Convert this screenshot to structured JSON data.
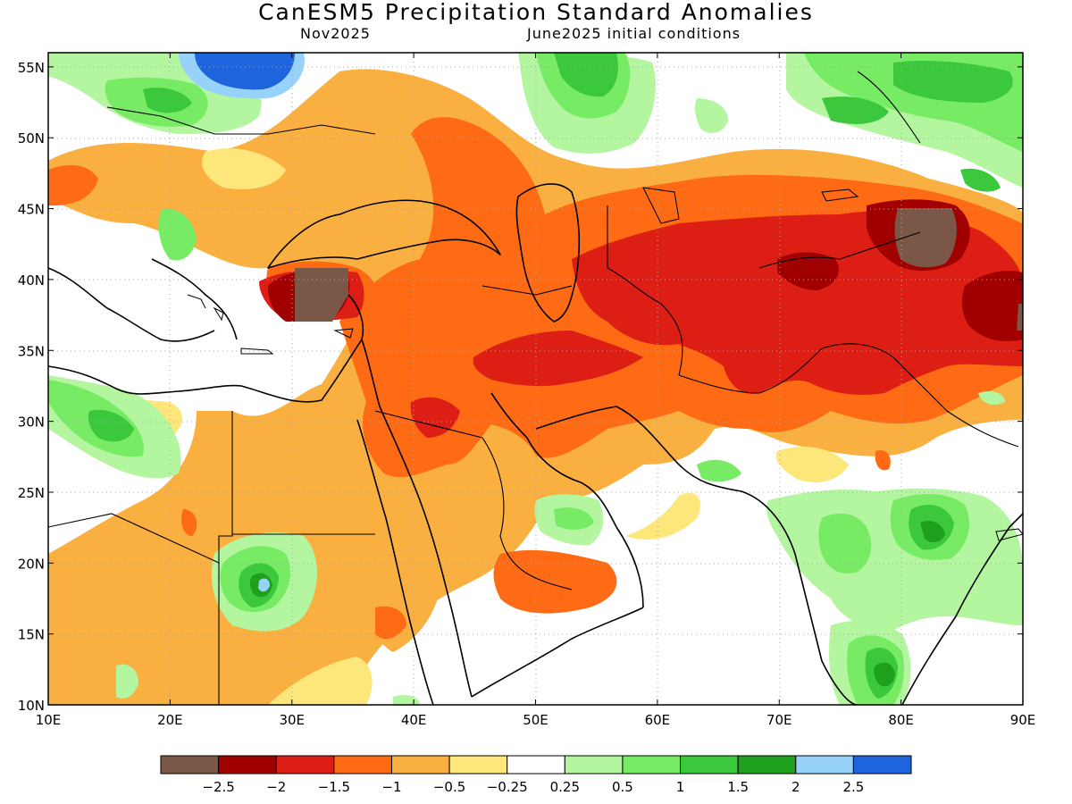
{
  "header": {
    "title": "CanESM5 Precipitation Standard Anomalies",
    "subtitle_left": "Nov2025",
    "subtitle_right": "June2025 initial conditions"
  },
  "map": {
    "lon_ticks": [
      "10E",
      "20E",
      "30E",
      "40E",
      "50E",
      "60E",
      "70E",
      "80E",
      "90E"
    ],
    "lat_ticks": [
      "55N",
      "50N",
      "45N",
      "40N",
      "35N",
      "30N",
      "25N",
      "20N",
      "15N",
      "10N"
    ],
    "region": {
      "lon_range": [
        10,
        90
      ],
      "lat_range": [
        10,
        56
      ]
    },
    "grid": true,
    "gridline_style": "dotted"
  },
  "colorbar": {
    "colors": [
      "#7b5748",
      "#a00000",
      "#dc1e14",
      "#ff6a14",
      "#f9b040",
      "#fde67a",
      "#ffffff",
      "#b4f5a0",
      "#78eb64",
      "#3cc83c",
      "#1ea01e",
      "#96d2fa",
      "#1e64dc"
    ],
    "labels": [
      "−2.5",
      "−2",
      "−1.5",
      "−1",
      "−0.5",
      "−0.25",
      "0.25",
      "0.5",
      "1",
      "1.5",
      "2",
      "2.5"
    ]
  }
}
